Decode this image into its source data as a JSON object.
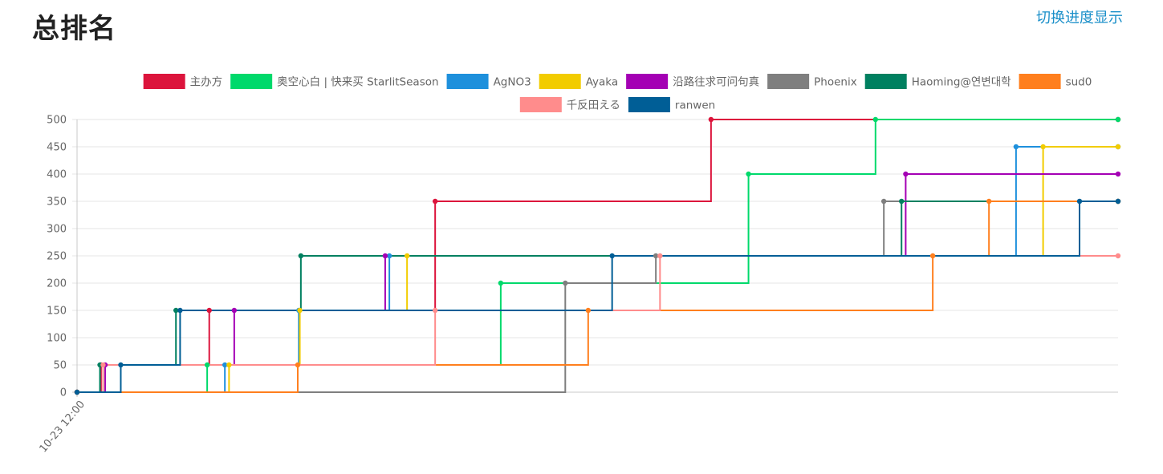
{
  "page": {
    "title": "总排名",
    "toggle_label": "切换进度显示"
  },
  "chart_data": {
    "type": "line",
    "step": true,
    "x_tick_labels": [
      "10-23 12:00"
    ],
    "x_range": [
      0,
      100
    ],
    "ylim": [
      0,
      500
    ],
    "y_ticks": [
      0,
      50,
      100,
      150,
      200,
      250,
      300,
      350,
      400,
      450,
      500
    ],
    "grid": true,
    "legend_position": "top-center",
    "series": [
      {
        "name": "主办方",
        "color": "#dc143c",
        "points": [
          [
            0,
            0
          ],
          [
            2.3,
            50
          ],
          [
            12.7,
            150
          ],
          [
            34.4,
            350
          ],
          [
            60.9,
            500
          ],
          [
            100,
            500
          ]
        ]
      },
      {
        "name": "奥空心白 | 快来买 StarlitSeason",
        "color": "#00d96b",
        "points": [
          [
            0,
            0
          ],
          [
            12.5,
            50
          ],
          [
            40.7,
            200
          ],
          [
            64.5,
            400
          ],
          [
            76.7,
            500
          ],
          [
            100,
            500
          ]
        ]
      },
      {
        "name": "AgNO3",
        "color": "#1e90dc",
        "points": [
          [
            0,
            0
          ],
          [
            14.2,
            50
          ],
          [
            21.3,
            150
          ],
          [
            30.0,
            250
          ],
          [
            90.2,
            450
          ],
          [
            100,
            450
          ]
        ]
      },
      {
        "name": "Ayaka",
        "color": "#f2cc00",
        "points": [
          [
            0,
            0
          ],
          [
            14.6,
            50
          ],
          [
            21.4,
            150
          ],
          [
            31.7,
            250
          ],
          [
            92.8,
            450
          ],
          [
            100,
            450
          ]
        ]
      },
      {
        "name": "沿路往求可问句真",
        "color": "#a400b4",
        "points": [
          [
            0,
            0
          ],
          [
            2.7,
            50
          ],
          [
            15.1,
            150
          ],
          [
            29.6,
            250
          ],
          [
            79.6,
            400
          ],
          [
            100,
            400
          ]
        ]
      },
      {
        "name": "Phoenix",
        "color": "#7f7f7f",
        "points": [
          [
            0,
            0
          ],
          [
            46.9,
            200
          ],
          [
            55.6,
            250
          ],
          [
            77.5,
            350
          ],
          [
            100,
            350
          ]
        ]
      },
      {
        "name": "Haoming@연변대학",
        "color": "#008060",
        "points": [
          [
            0,
            0
          ],
          [
            2.2,
            50
          ],
          [
            9.5,
            150
          ],
          [
            21.5,
            250
          ],
          [
            79.2,
            350
          ],
          [
            100,
            350
          ]
        ]
      },
      {
        "name": "sud0",
        "color": "#ff7f1e",
        "points": [
          [
            0,
            0
          ],
          [
            21.2,
            50
          ],
          [
            49.1,
            150
          ],
          [
            82.2,
            250
          ],
          [
            87.6,
            350
          ],
          [
            100,
            350
          ]
        ]
      },
      {
        "name": "千反田える",
        "color": "#ff8c8c",
        "points": [
          [
            0,
            0
          ],
          [
            2.5,
            50
          ],
          [
            34.4,
            150
          ],
          [
            56.0,
            250
          ],
          [
            100,
            250
          ]
        ]
      },
      {
        "name": "ranwen",
        "color": "#005e96",
        "points": [
          [
            0,
            0
          ],
          [
            4.2,
            50
          ],
          [
            9.9,
            150
          ],
          [
            51.4,
            250
          ],
          [
            96.3,
            350
          ],
          [
            100,
            350
          ]
        ]
      }
    ]
  }
}
